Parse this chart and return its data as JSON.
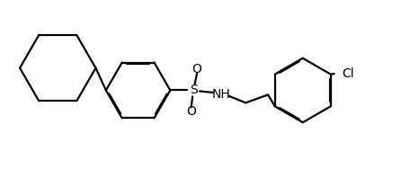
{
  "background_color": "#ffffff",
  "line_color": "#000000",
  "line_width": 1.6,
  "dbo": 0.022,
  "dbo_shrink": 0.15,
  "figsize": [
    4.66,
    1.88
  ],
  "dpi": 100,
  "xlim": [
    0.0,
    9.3
  ],
  "ylim": [
    0.0,
    3.76
  ]
}
